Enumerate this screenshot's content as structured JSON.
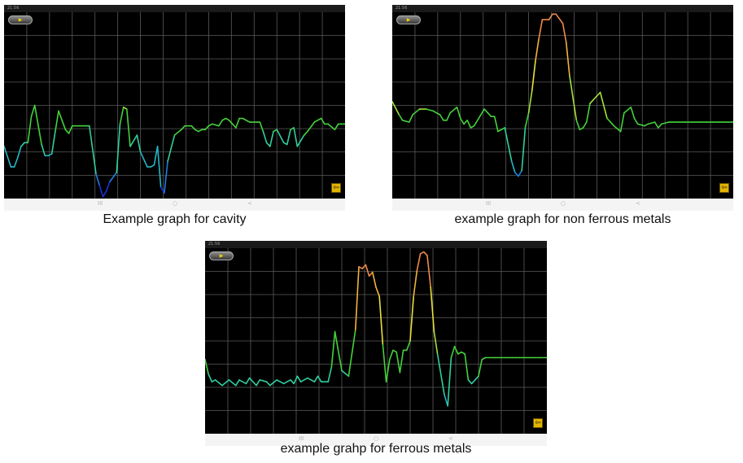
{
  "panels": [
    {
      "status_time": "21:56",
      "pill_label": "▶",
      "exit_icon": "exit-icon",
      "nav_left": "III",
      "nav_mid": "○",
      "nav_right": "<",
      "caption": "Example graph for cavity",
      "chart_data": {
        "type": "line",
        "title": "",
        "xlabel": "",
        "ylabel": "",
        "grid": true,
        "ylim": [
          0,
          100
        ],
        "x": [
          0,
          2,
          3,
          4,
          5,
          6,
          7,
          8,
          9,
          11,
          12,
          13,
          14,
          15,
          16,
          18,
          19,
          20,
          21,
          22,
          23,
          24,
          25,
          27,
          28,
          29,
          30,
          31,
          33,
          34,
          35,
          36,
          37,
          39,
          40,
          42,
          43,
          44,
          45,
          46,
          47,
          48,
          50,
          52,
          53,
          55,
          56,
          57,
          58,
          59,
          60,
          61,
          63,
          64,
          65,
          66,
          67,
          68,
          69,
          70,
          72,
          74,
          75,
          76,
          77,
          78,
          79,
          80,
          82,
          83,
          84,
          85,
          86,
          88,
          89,
          91,
          93,
          94,
          95,
          97,
          98,
          100
        ],
        "y": [
          28,
          17,
          17,
          22,
          28,
          30,
          30,
          44,
          50,
          29,
          23,
          23,
          24,
          36,
          47,
          37,
          35,
          39,
          39,
          39,
          39,
          39,
          39,
          13,
          7,
          1,
          4,
          9,
          14,
          40,
          49,
          48,
          28,
          34,
          25,
          17,
          17,
          18,
          28,
          6,
          3,
          20,
          34,
          37,
          39,
          39,
          37,
          36,
          37,
          37,
          39,
          40,
          39,
          42,
          43,
          42,
          40,
          38,
          43,
          43,
          41,
          41,
          41,
          36,
          30,
          28,
          36,
          37,
          30,
          29,
          37,
          38,
          28,
          34,
          36,
          41,
          43,
          40,
          40,
          37,
          40,
          40
        ]
      }
    },
    {
      "status_time": "21:56",
      "pill_label": "▶",
      "exit_icon": "exit-icon",
      "nav_left": "III",
      "nav_mid": "○",
      "nav_right": "<",
      "caption": "example graph for non ferrous metals",
      "chart_data": {
        "type": "line",
        "title": "",
        "xlabel": "",
        "ylabel": "",
        "grid": true,
        "ylim": [
          0,
          100
        ],
        "x": [
          0,
          2,
          3,
          5,
          6,
          8,
          10,
          12,
          14,
          15,
          16,
          17,
          19,
          20,
          21,
          22,
          23,
          24,
          26,
          27,
          29,
          30,
          31,
          33,
          35,
          36,
          37,
          38,
          39,
          40,
          41,
          42,
          43,
          44,
          46,
          47,
          48,
          50,
          51,
          52,
          54,
          55,
          56,
          57,
          58,
          60,
          61,
          63,
          64,
          65,
          67,
          68,
          70,
          71,
          72,
          74,
          75,
          77,
          78,
          79,
          81,
          82,
          84,
          86,
          88,
          90,
          92,
          94,
          96,
          98,
          100
        ],
        "y": [
          52,
          45,
          42,
          41,
          45,
          48,
          48,
          47,
          45,
          42,
          42,
          46,
          49,
          43,
          40,
          42,
          38,
          39,
          45,
          48,
          44,
          44,
          36,
          38,
          20,
          14,
          12,
          15,
          38,
          46,
          58,
          74,
          86,
          96,
          96,
          99,
          99,
          94,
          84,
          66,
          42,
          37,
          38,
          41,
          51,
          55,
          57,
          43,
          41,
          39,
          36,
          46,
          49,
          43,
          40,
          39,
          40,
          41,
          38,
          40,
          41,
          41,
          41,
          41,
          41,
          41,
          41,
          41,
          41,
          41,
          41
        ]
      }
    },
    {
      "status_time": "21:56",
      "pill_label": "▶",
      "exit_icon": "exit-icon",
      "nav_left": "III",
      "nav_mid": "○",
      "nav_right": "<",
      "caption": "example grahp for ferrous metals",
      "chart_data": {
        "type": "line",
        "title": "",
        "xlabel": "",
        "ylabel": "",
        "grid": true,
        "ylim": [
          0,
          100
        ],
        "x": [
          0,
          1,
          2,
          3,
          5,
          7,
          9,
          10,
          12,
          13,
          15,
          16,
          18,
          19,
          21,
          22,
          23,
          25,
          26,
          27,
          28,
          30,
          32,
          33,
          34,
          36,
          37,
          38,
          40,
          42,
          44,
          45,
          46,
          47,
          48,
          49,
          50,
          51,
          52,
          53,
          54,
          55,
          56,
          57,
          58,
          59,
          60,
          61,
          62,
          63,
          64,
          65,
          66,
          67,
          68,
          70,
          71,
          72,
          73,
          74,
          75,
          76,
          77,
          78,
          80,
          81,
          82,
          84,
          85,
          86,
          88,
          89,
          90,
          91,
          92,
          93,
          94,
          95,
          96,
          98,
          100
        ],
        "y": [
          40,
          32,
          28,
          29,
          26,
          29,
          26,
          29,
          27,
          30,
          26,
          29,
          28,
          26,
          29,
          28,
          27,
          29,
          27,
          31,
          28,
          30,
          28,
          31,
          28,
          28,
          36,
          55,
          34,
          31,
          56,
          90,
          89,
          91,
          85,
          87,
          79,
          74,
          48,
          28,
          40,
          45,
          44,
          33,
          45,
          45,
          50,
          74,
          88,
          97,
          98,
          96,
          79,
          55,
          43,
          21,
          15,
          41,
          47,
          43,
          44,
          43,
          29,
          27,
          31,
          40,
          41,
          41,
          41,
          41,
          41,
          41,
          41,
          41,
          41,
          41,
          41,
          41,
          41,
          41,
          41
        ]
      }
    }
  ]
}
